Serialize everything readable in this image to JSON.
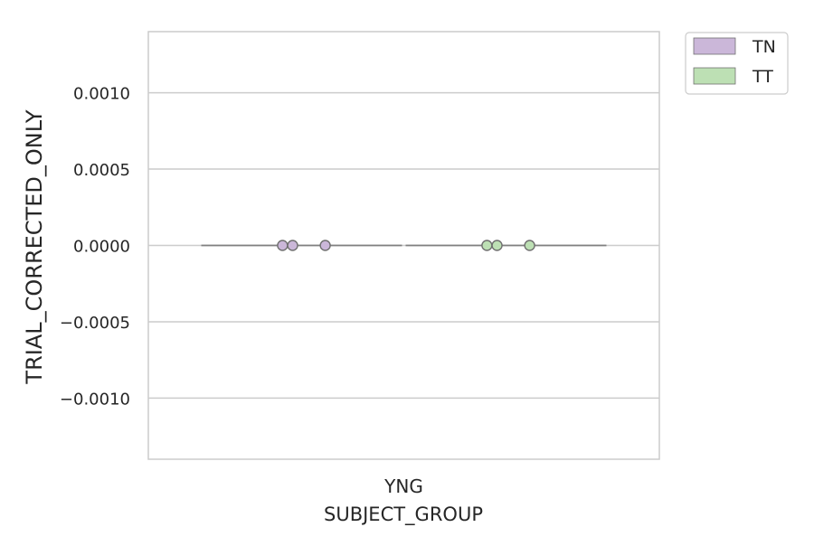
{
  "chart_data": {
    "type": "violin",
    "title": "",
    "xlabel": "SUBJECT_GROUP",
    "ylabel": "TRIAL_CORRECTED_ONLY",
    "categories": [
      "YNG"
    ],
    "ylim": [
      -0.0014,
      0.0014
    ],
    "y_ticks": [
      -0.001,
      -0.0005,
      0.0,
      0.0005,
      0.001
    ],
    "y_tick_labels": [
      "−0.0010",
      "−0.0005",
      "0.0000",
      "0.0005",
      "0.0010"
    ],
    "grid": true,
    "legend_position": "outside-top-right",
    "series": [
      {
        "name": "TN",
        "color": "#cbb7d9",
        "points": [
          {
            "category": "YNG",
            "y": 0.0
          },
          {
            "category": "YNG",
            "y": 0.0
          },
          {
            "category": "YNG",
            "y": 0.0
          }
        ]
      },
      {
        "name": "TT",
        "color": "#bde0b4",
        "points": [
          {
            "category": "YNG",
            "y": 0.0
          },
          {
            "category": "YNG",
            "y": 0.0
          },
          {
            "category": "YNG",
            "y": 0.0
          }
        ]
      }
    ]
  }
}
